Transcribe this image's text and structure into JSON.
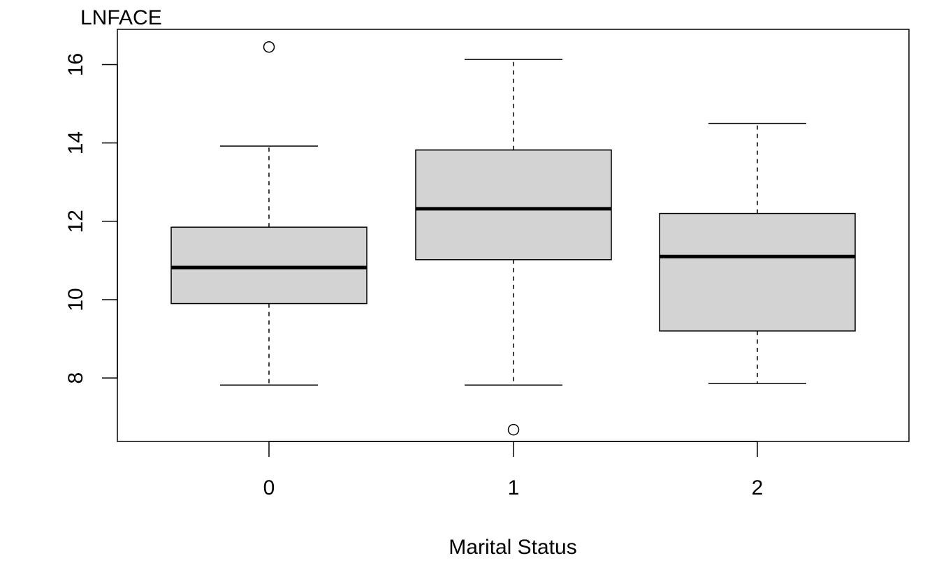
{
  "chart_data": {
    "type": "boxplot",
    "ylabel": "LNFACE",
    "xlabel": "Marital Status",
    "ylim": [
      6.38,
      16.9
    ],
    "y_ticks": [
      "8",
      "10",
      "12",
      "14",
      "16"
    ],
    "categories": [
      "0",
      "1",
      "2"
    ],
    "boxes": [
      {
        "category": "0",
        "whisker_low": 7.82,
        "q1": 9.9,
        "median": 10.82,
        "q3": 11.85,
        "whisker_high": 13.92,
        "outliers": [
          16.45
        ]
      },
      {
        "category": "1",
        "whisker_low": 7.82,
        "q1": 11.02,
        "median": 12.32,
        "q3": 13.82,
        "whisker_high": 16.13,
        "outliers": [
          6.68
        ]
      },
      {
        "category": "2",
        "whisker_low": 7.86,
        "q1": 9.2,
        "median": 11.1,
        "q3": 12.2,
        "whisker_high": 14.5,
        "outliers": []
      }
    ],
    "box_fill": "#d3d3d3",
    "line_color": "#000000",
    "grid": false,
    "legend": "none"
  }
}
